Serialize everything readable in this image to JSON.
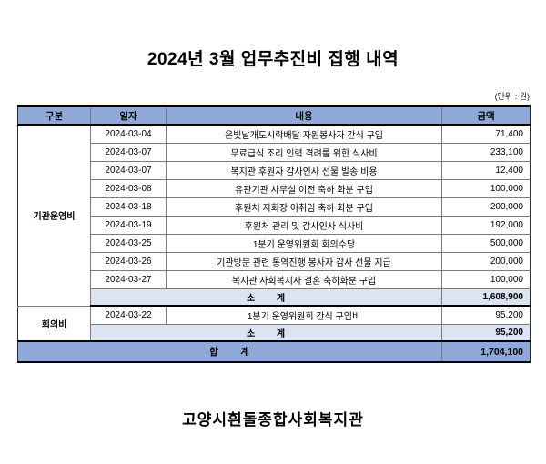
{
  "title": "2024년 3월 업무추진비 집행 내역",
  "unit_label": "(단위 : 원)",
  "footer": "고양시흰돌종합사회복지관",
  "colors": {
    "header_bg": "#8faad9",
    "subtotal_bg": "#dce3f2",
    "total_bg": "#8faad9",
    "border_thick": "#000000",
    "border_thin": "#7a7a7a"
  },
  "table": {
    "headers": [
      "구분",
      "일자",
      "내용",
      "금액"
    ],
    "sections": [
      {
        "category": "기관운영비",
        "rows": [
          {
            "date": "2024-03-04",
            "description": "은빛날개도시락배달 자원봉사자 간식 구입",
            "amount": "71,400"
          },
          {
            "date": "2024-03-07",
            "description": "무료급식 조리 인력 격려를 위한 식사비",
            "amount": "233,100"
          },
          {
            "date": "2024-03-07",
            "description": "복지관 후원자 감사인사 선물 발송 비용",
            "amount": "12,400"
          },
          {
            "date": "2024-03-08",
            "description": "유관기관 사무실 이전 축하 화분 구입",
            "amount": "100,000"
          },
          {
            "date": "2024-03-18",
            "description": "후원처 지회장 이취임 축하 화분 구입",
            "amount": "200,000"
          },
          {
            "date": "2024-03-19",
            "description": "후원처 관리 및 감사인사 식사비",
            "amount": "192,000"
          },
          {
            "date": "2024-03-25",
            "description": "1분기 운영위원회 회의수당",
            "amount": "500,000"
          },
          {
            "date": "2024-03-26",
            "description": "기관방문 관련 통역진행 봉사자 감사 선물 지급",
            "amount": "200,000"
          },
          {
            "date": "2024-03-27",
            "description": "복지관 사회복지사 결혼 축하화분 구입",
            "amount": "100,000"
          }
        ],
        "subtotal_label": "소      계",
        "subtotal_amount": "1,608,900"
      },
      {
        "category": "회의비",
        "rows": [
          {
            "date": "2024-03-22",
            "description": "1분기 운영위원회 간식 구입비",
            "amount": "95,200"
          }
        ],
        "subtotal_label": "소      계",
        "subtotal_amount": "95,200"
      }
    ],
    "total_label": "합      계",
    "total_amount": "1,704,100"
  }
}
